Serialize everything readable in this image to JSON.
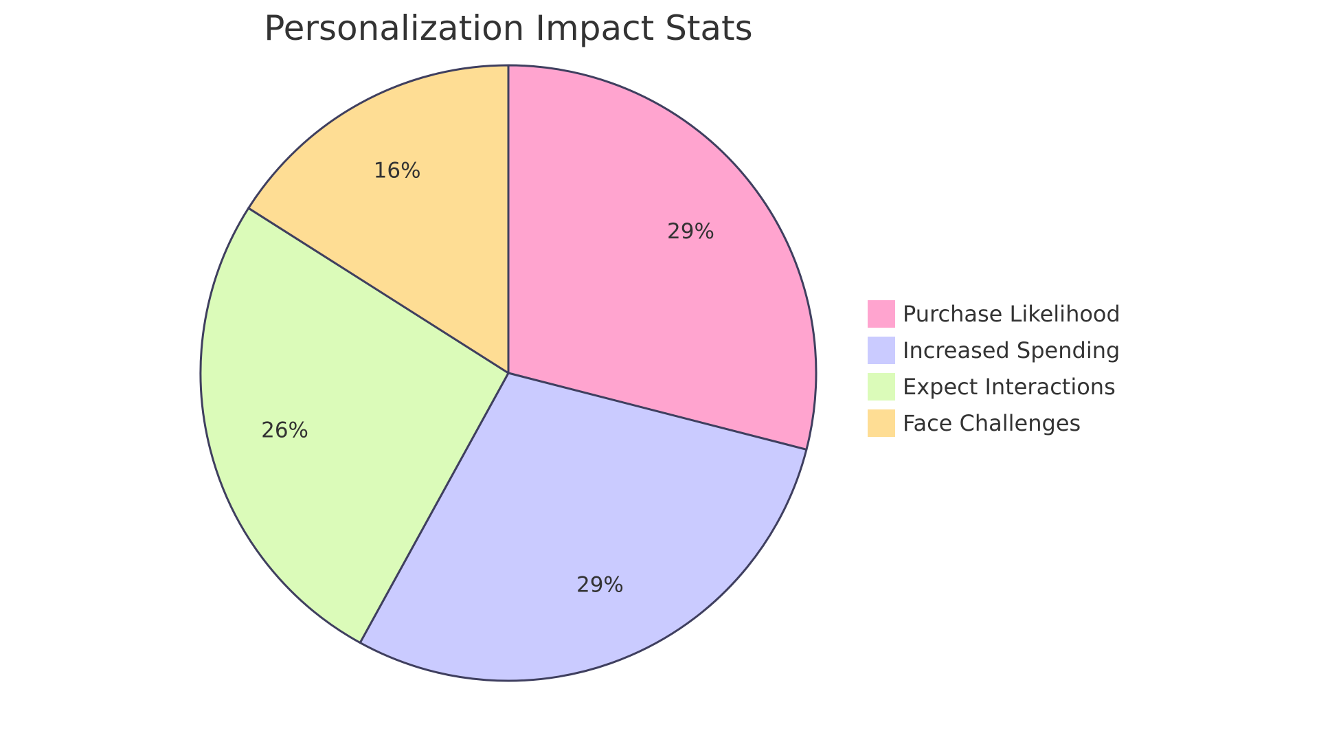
{
  "chart_data": {
    "type": "pie",
    "title": "Personalization Impact Stats",
    "slices": [
      {
        "label": "Purchase Likelihood",
        "value": 29,
        "display": "29%",
        "color": "#ffa4cf"
      },
      {
        "label": "Increased Spending",
        "value": 29,
        "display": "29%",
        "color": "#cacbff"
      },
      {
        "label": "Expect Interactions",
        "value": 26,
        "display": "26%",
        "color": "#dbfbb9"
      },
      {
        "label": "Face Challenges",
        "value": 16,
        "display": "16%",
        "color": "#fedd94"
      }
    ],
    "legend_position": "right"
  }
}
